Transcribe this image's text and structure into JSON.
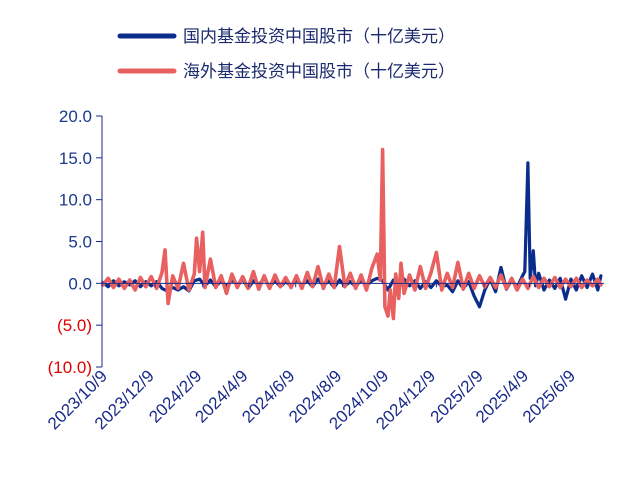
{
  "chart_data": {
    "type": "line",
    "title": "",
    "xlabel": "",
    "ylabel": "",
    "ylim": [
      -10,
      20
    ],
    "grid": false,
    "legend_position": "top",
    "y_ticks": [
      {
        "value": 20,
        "label": "20.0",
        "negative": false
      },
      {
        "value": 15,
        "label": "15.0",
        "negative": false
      },
      {
        "value": 10,
        "label": "10.0",
        "negative": false
      },
      {
        "value": 5,
        "label": "5.0",
        "negative": false
      },
      {
        "value": 0,
        "label": "0.0",
        "negative": false
      },
      {
        "value": -5,
        "label": "(5.0)",
        "negative": true
      },
      {
        "value": -10,
        "label": "(10.0)",
        "negative": true
      }
    ],
    "x_ticks": [
      "2023/10/9",
      "2023/12/9",
      "2024/2/9",
      "2024/4/9",
      "2024/6/9",
      "2024/8/9",
      "2024/10/9",
      "2024/12/9",
      "2025/2/9",
      "2025/4/9",
      "2025/6/9"
    ],
    "x_range": [
      "2023/10/1",
      "2025/7/15"
    ],
    "colors": {
      "positive_tick": "#1a3a8a",
      "negative_tick": "#e00000",
      "axis": "#1a2a8a"
    },
    "series": [
      {
        "name": "国内基金投资中国股市（十亿美元）",
        "color": "#0a2d8c",
        "points": [
          [
            "2023/10/2",
            0.1
          ],
          [
            "2023/10/9",
            -0.4
          ],
          [
            "2023/10/16",
            0.3
          ],
          [
            "2023/10/23",
            -0.3
          ],
          [
            "2023/10/30",
            0.2
          ],
          [
            "2023/11/6",
            -0.2
          ],
          [
            "2023/11/13",
            0.3
          ],
          [
            "2023/11/20",
            -0.4
          ],
          [
            "2023/11/27",
            0.2
          ],
          [
            "2023/12/4",
            -0.3
          ],
          [
            "2023/12/11",
            0.2
          ],
          [
            "2023/12/18",
            -0.6
          ],
          [
            "2023/12/25",
            -0.9
          ],
          [
            "2024/1/1",
            -0.5
          ],
          [
            "2024/1/8",
            -0.8
          ],
          [
            "2024/1/15",
            -0.4
          ],
          [
            "2024/1/22",
            -0.9
          ],
          [
            "2024/1/29",
            0.3
          ],
          [
            "2024/2/5",
            0.5
          ],
          [
            "2024/2/12",
            -0.3
          ],
          [
            "2024/2/19",
            0.4
          ],
          [
            "2024/2/26",
            -0.4
          ],
          [
            "2024/3/4",
            0.3
          ],
          [
            "2024/3/11",
            -0.3
          ],
          [
            "2024/3/18",
            0.4
          ],
          [
            "2024/3/25",
            -0.2
          ],
          [
            "2024/4/1",
            0.5
          ],
          [
            "2024/4/8",
            -0.6
          ],
          [
            "2024/4/15",
            0.3
          ],
          [
            "2024/4/22",
            -0.2
          ],
          [
            "2024/4/29",
            0.6
          ],
          [
            "2024/5/6",
            -0.4
          ],
          [
            "2024/5/13",
            0.3
          ],
          [
            "2024/5/20",
            -0.4
          ],
          [
            "2024/5/27",
            0.2
          ],
          [
            "2024/6/3",
            -0.3
          ],
          [
            "2024/6/10",
            0.4
          ],
          [
            "2024/6/17",
            -0.2
          ],
          [
            "2024/6/24",
            0.3
          ],
          [
            "2024/7/1",
            -0.4
          ],
          [
            "2024/7/8",
            0.5
          ],
          [
            "2024/7/15",
            -0.3
          ],
          [
            "2024/7/22",
            0.3
          ],
          [
            "2024/7/29",
            -0.5
          ],
          [
            "2024/8/5",
            0.4
          ],
          [
            "2024/8/12",
            -0.3
          ],
          [
            "2024/8/19",
            0.2
          ],
          [
            "2024/8/26",
            -0.4
          ],
          [
            "2024/9/2",
            0.4
          ],
          [
            "2024/9/9",
            -0.3
          ],
          [
            "2024/9/16",
            0.3
          ],
          [
            "2024/9/23",
            0.6
          ],
          [
            "2024/9/30",
            0.3
          ],
          [
            "2024/10/7",
            -0.8
          ],
          [
            "2024/10/14",
            0.4
          ],
          [
            "2024/10/21",
            -0.5
          ],
          [
            "2024/10/28",
            0.5
          ],
          [
            "2024/11/4",
            -0.3
          ],
          [
            "2024/11/11",
            0.3
          ],
          [
            "2024/11/18",
            -0.6
          ],
          [
            "2024/11/25",
            0.2
          ],
          [
            "2024/12/2",
            -0.5
          ],
          [
            "2024/12/9",
            0.3
          ],
          [
            "2024/12/16",
            -0.4
          ],
          [
            "2024/12/23",
            -0.2
          ],
          [
            "2024/12/30",
            -1.0
          ],
          [
            "2025/1/6",
            0.3
          ],
          [
            "2025/1/13",
            -0.6
          ],
          [
            "2025/1/20",
            0.2
          ],
          [
            "2025/1/27",
            -1.5
          ],
          [
            "2025/2/3",
            -2.8
          ],
          [
            "2025/2/10",
            -0.8
          ],
          [
            "2025/2/17",
            0.5
          ],
          [
            "2025/2/24",
            -1.0
          ],
          [
            "2025/3/3",
            1.9
          ],
          [
            "2025/3/10",
            -0.7
          ],
          [
            "2025/3/17",
            0.4
          ],
          [
            "2025/3/24",
            -0.5
          ],
          [
            "2025/3/31",
            0.9
          ],
          [
            "2025/4/3",
            1.4
          ],
          [
            "2025/4/7",
            14.4
          ],
          [
            "2025/4/10",
            0.6
          ],
          [
            "2025/4/14",
            3.9
          ],
          [
            "2025/4/17",
            -0.3
          ],
          [
            "2025/4/21",
            1.2
          ],
          [
            "2025/4/28",
            -0.8
          ],
          [
            "2025/5/5",
            0.4
          ],
          [
            "2025/5/12",
            -0.6
          ],
          [
            "2025/5/19",
            0.6
          ],
          [
            "2025/5/26",
            -1.9
          ],
          [
            "2025/6/2",
            0.5
          ],
          [
            "2025/6/9",
            -0.8
          ],
          [
            "2025/6/16",
            0.9
          ],
          [
            "2025/6/23",
            -0.5
          ],
          [
            "2025/6/30",
            1.1
          ],
          [
            "2025/7/7",
            -0.8
          ],
          [
            "2025/7/11",
            0.9
          ]
        ]
      },
      {
        "name": "海外基金投资中国股市（十亿美元）",
        "color": "#e8605f",
        "points": [
          [
            "2023/10/2",
            -0.2
          ],
          [
            "2023/10/9",
            0.6
          ],
          [
            "2023/10/16",
            -0.5
          ],
          [
            "2023/10/23",
            0.5
          ],
          [
            "2023/10/30",
            -0.6
          ],
          [
            "2023/11/6",
            0.4
          ],
          [
            "2023/11/13",
            -0.8
          ],
          [
            "2023/11/20",
            0.7
          ],
          [
            "2023/11/27",
            -0.4
          ],
          [
            "2023/12/4",
            0.8
          ],
          [
            "2023/12/11",
            -0.6
          ],
          [
            "2023/12/18",
            1.3
          ],
          [
            "2023/12/22",
            4.0
          ],
          [
            "2023/12/26",
            -2.4
          ],
          [
            "2024/1/1",
            0.9
          ],
          [
            "2024/1/8",
            -0.6
          ],
          [
            "2024/1/15",
            2.4
          ],
          [
            "2024/1/22",
            -0.8
          ],
          [
            "2024/1/29",
            1.1
          ],
          [
            "2024/2/1",
            5.4
          ],
          [
            "2024/2/5",
            1.4
          ],
          [
            "2024/2/9",
            6.1
          ],
          [
            "2024/2/12",
            -0.5
          ],
          [
            "2024/2/19",
            2.9
          ],
          [
            "2024/2/26",
            -0.5
          ],
          [
            "2024/3/4",
            0.9
          ],
          [
            "2024/3/11",
            -1.2
          ],
          [
            "2024/3/18",
            1.1
          ],
          [
            "2024/3/25",
            -0.5
          ],
          [
            "2024/4/1",
            0.8
          ],
          [
            "2024/4/8",
            -0.6
          ],
          [
            "2024/4/15",
            1.4
          ],
          [
            "2024/4/22",
            -0.7
          ],
          [
            "2024/4/29",
            0.9
          ],
          [
            "2024/5/6",
            -0.6
          ],
          [
            "2024/5/13",
            1.0
          ],
          [
            "2024/5/20",
            -0.4
          ],
          [
            "2024/5/27",
            0.7
          ],
          [
            "2024/6/3",
            -0.5
          ],
          [
            "2024/6/10",
            0.9
          ],
          [
            "2024/6/17",
            -0.6
          ],
          [
            "2024/6/24",
            1.3
          ],
          [
            "2024/7/1",
            -0.4
          ],
          [
            "2024/7/8",
            2.0
          ],
          [
            "2024/7/15",
            -0.6
          ],
          [
            "2024/7/22",
            1.1
          ],
          [
            "2024/7/29",
            -0.5
          ],
          [
            "2024/8/5",
            4.4
          ],
          [
            "2024/8/12",
            -0.4
          ],
          [
            "2024/8/19",
            1.2
          ],
          [
            "2024/8/26",
            -0.6
          ],
          [
            "2024/9/2",
            1.0
          ],
          [
            "2024/9/9",
            -0.8
          ],
          [
            "2024/9/16",
            1.8
          ],
          [
            "2024/9/23",
            3.5
          ],
          [
            "2024/9/27",
            0.4
          ],
          [
            "2024/9/30",
            16.0
          ],
          [
            "2024/10/3",
            -2.8
          ],
          [
            "2024/10/7",
            -3.9
          ],
          [
            "2024/10/10",
            -0.8
          ],
          [
            "2024/10/14",
            -4.2
          ],
          [
            "2024/10/17",
            1.1
          ],
          [
            "2024/10/21",
            -1.8
          ],
          [
            "2024/10/24",
            2.4
          ],
          [
            "2024/10/28",
            -1.2
          ],
          [
            "2024/11/4",
            1.0
          ],
          [
            "2024/11/11",
            -0.8
          ],
          [
            "2024/11/18",
            2.0
          ],
          [
            "2024/11/25",
            -0.6
          ],
          [
            "2024/12/2",
            1.3
          ],
          [
            "2024/12/9",
            3.7
          ],
          [
            "2024/12/16",
            -0.8
          ],
          [
            "2024/12/23",
            1.2
          ],
          [
            "2024/12/30",
            -0.5
          ],
          [
            "2025/1/6",
            2.5
          ],
          [
            "2025/1/13",
            -0.7
          ],
          [
            "2025/1/20",
            1.2
          ],
          [
            "2025/1/27",
            -0.6
          ],
          [
            "2025/2/3",
            0.9
          ],
          [
            "2025/2/10",
            -0.4
          ],
          [
            "2025/2/17",
            0.7
          ],
          [
            "2025/2/24",
            -0.5
          ],
          [
            "2025/3/3",
            1.0
          ],
          [
            "2025/3/10",
            -0.6
          ],
          [
            "2025/3/17",
            0.6
          ],
          [
            "2025/3/24",
            -0.8
          ],
          [
            "2025/3/31",
            0.5
          ],
          [
            "2025/4/7",
            -0.6
          ],
          [
            "2025/4/14",
            0.8
          ],
          [
            "2025/4/21",
            -0.5
          ],
          [
            "2025/4/28",
            0.6
          ],
          [
            "2025/5/5",
            -0.4
          ],
          [
            "2025/5/12",
            0.7
          ],
          [
            "2025/5/19",
            -0.5
          ],
          [
            "2025/5/26",
            0.5
          ],
          [
            "2025/6/2",
            -0.4
          ],
          [
            "2025/6/9",
            0.6
          ],
          [
            "2025/6/16",
            -0.5
          ],
          [
            "2025/6/23",
            0.4
          ],
          [
            "2025/6/30",
            -0.3
          ],
          [
            "2025/7/7",
            0.5
          ],
          [
            "2025/7/11",
            -0.2
          ]
        ]
      }
    ]
  }
}
